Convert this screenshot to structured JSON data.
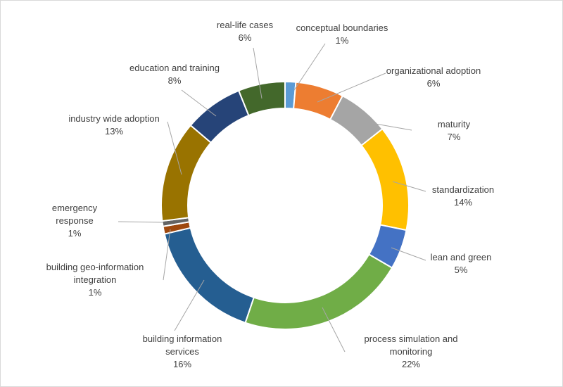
{
  "chart_data": {
    "type": "pie",
    "variant": "doughnut",
    "title": "",
    "legend": "none",
    "data_labels": "category-and-percent",
    "start_angle_deg": 0,
    "direction": "clockwise",
    "slices": [
      {
        "label": "conceptual boundaries",
        "value": 1.4,
        "pct_label": "1%",
        "color": "#5B9BD5"
      },
      {
        "label": "organizational adoption",
        "value": 6.3,
        "pct_label": "6%",
        "color": "#ED7D31"
      },
      {
        "label": "maturity",
        "value": 6.7,
        "pct_label": "7%",
        "color": "#A5A5A5"
      },
      {
        "label": "standardization",
        "value": 13.8,
        "pct_label": "14%",
        "color": "#FFC000"
      },
      {
        "label": "lean and green",
        "value": 5.2,
        "pct_label": "5%",
        "color": "#4472C4"
      },
      {
        "label": "process simulation and monitoring",
        "value": 21.8,
        "pct_label": "22%",
        "color": "#70AD47"
      },
      {
        "label": "building information services",
        "value": 16.1,
        "pct_label": "16%",
        "color": "#255E91"
      },
      {
        "label": "building geo-information integration",
        "value": 1.0,
        "pct_label": "1%",
        "color": "#9E480E"
      },
      {
        "label": "emergency response",
        "value": 0.7,
        "pct_label": "1%",
        "color": "#636363"
      },
      {
        "label": "industry wide adoption",
        "value": 13.2,
        "pct_label": "13%",
        "color": "#997300"
      },
      {
        "label": "education and training",
        "value": 7.7,
        "pct_label": "8%",
        "color": "#264478"
      },
      {
        "label": "real-life cases",
        "value": 6.1,
        "pct_label": "6%",
        "color": "#43682B"
      }
    ]
  }
}
